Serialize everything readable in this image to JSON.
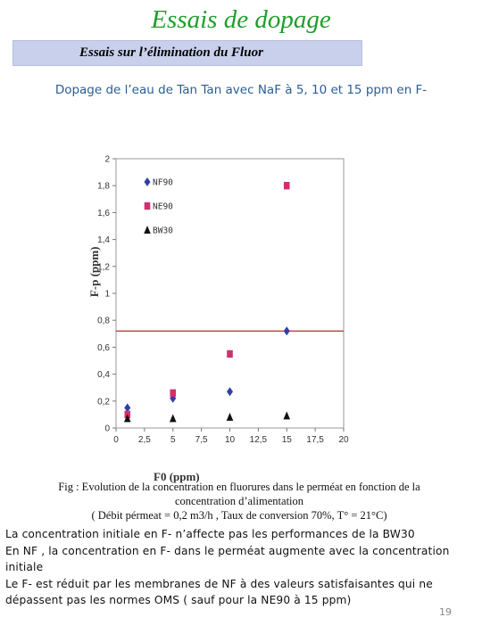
{
  "slide": {
    "title": "Essais de dopage",
    "subtitle": "Essais sur l’élimination du  Fluor",
    "heading": "Dopage de l’eau de Tan Tan avec NaF à 5, 10 et 15 ppm en F-",
    "caption_line1": "Fig : Evolution de la concentration en fluorures dans le perméat en fonction de la",
    "caption_line2": "concentration d’alimentation",
    "caption_line3": "( Débit pérmeat = 0,2 m3/h , Taux de conversion  70%,  T° = 21°C)",
    "notes": [
      "La concentration initiale en F- n’affecte pas les performances de la BW30",
      "En NF , la concentration en F- dans le perméat augmente avec la concentration initiale",
      "Le F- est réduit par les membranes de NF à des valeurs satisfaisantes qui ne dépassent pas les normes OMS ( sauf pour la NE90 à 15 ppm)"
    ],
    "page_number": "19"
  },
  "chart_data": {
    "type": "scatter",
    "xlabel": "F0 (ppm)",
    "ylabel": "F-p (ppm)",
    "xlim": [
      0,
      20
    ],
    "ylim": [
      0,
      2
    ],
    "x_ticks": [
      "0",
      "2,5",
      "5",
      "7,5",
      "10",
      "12,5",
      "15",
      "17,5",
      "20"
    ],
    "y_ticks": [
      "0",
      "0,2",
      "0,4",
      "0,6",
      "0,8",
      "1",
      "1,2",
      "1,4",
      "1,6",
      "1,8",
      "2"
    ],
    "reference_line": {
      "y": 0.72,
      "color": "#c0282c"
    },
    "legend_position": "top-left",
    "series": [
      {
        "name": "NF90",
        "marker": "diamond",
        "color": "#3040a8",
        "x": [
          1,
          5,
          10,
          15
        ],
        "y": [
          0.15,
          0.22,
          0.27,
          0.72
        ]
      },
      {
        "name": "NE90",
        "marker": "square",
        "color": "#d0306e",
        "x": [
          1,
          5,
          10,
          15
        ],
        "y": [
          0.1,
          0.26,
          0.55,
          1.8
        ]
      },
      {
        "name": "BW30",
        "marker": "triangle",
        "color": "#111111",
        "x": [
          1,
          5,
          10,
          15
        ],
        "y": [
          0.07,
          0.07,
          0.08,
          0.09
        ]
      }
    ]
  }
}
